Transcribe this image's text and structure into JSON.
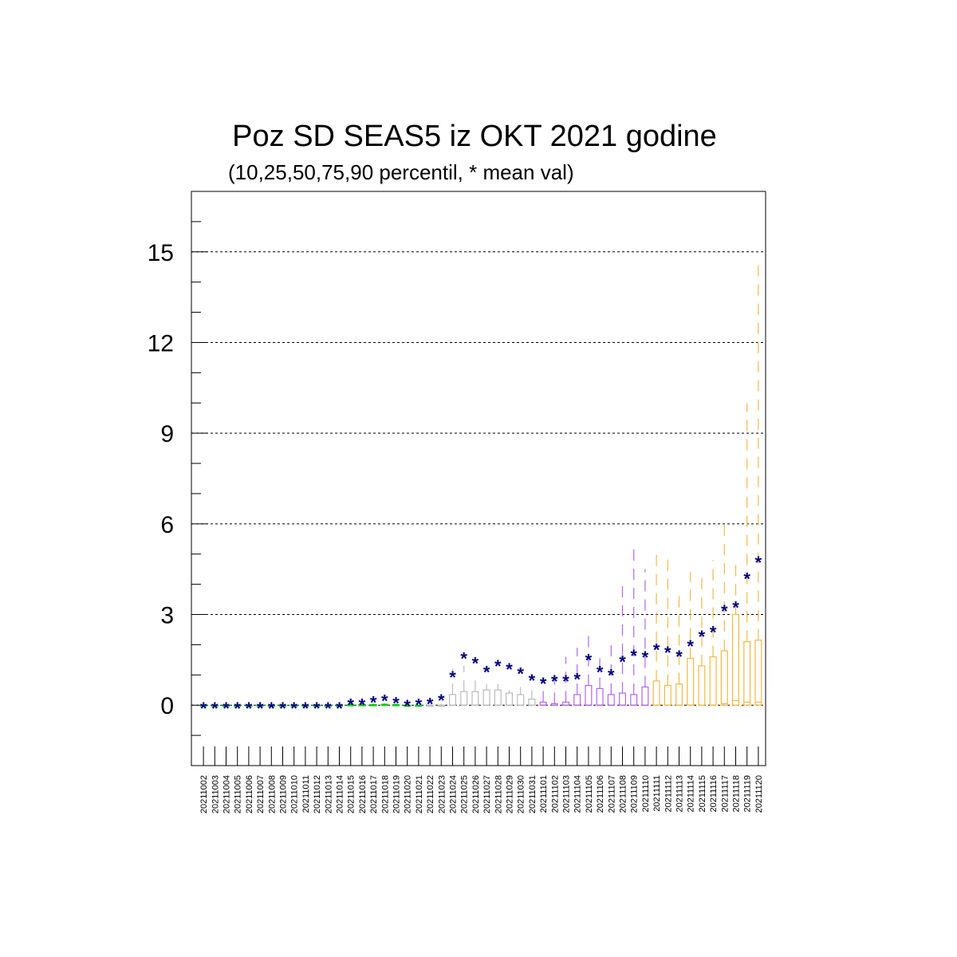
{
  "chart_data": {
    "type": "box",
    "title": "Poz SD SEAS5 iz OKT 2021 godine",
    "subtitle": "(10,25,50,75,90 percentil, * mean val)",
    "xlabel": "",
    "ylabel": "",
    "ylim": [
      -2,
      17
    ],
    "yticks": [
      0,
      3,
      6,
      9,
      12,
      15
    ],
    "grid_y": true,
    "categories": [
      "20211002",
      "20211003",
      "20211004",
      "20211005",
      "20211006",
      "20211007",
      "20211008",
      "20211009",
      "20211010",
      "20211011",
      "20211012",
      "20211013",
      "20211014",
      "20211015",
      "20211016",
      "20211017",
      "20211018",
      "20211019",
      "20211020",
      "20211021",
      "20211022",
      "20211023",
      "20211024",
      "20211025",
      "20211026",
      "20211027",
      "20211028",
      "20211029",
      "20211030",
      "20211031",
      "20211101",
      "20211102",
      "20211103",
      "20211104",
      "20211105",
      "20211106",
      "20211107",
      "20211108",
      "20211109",
      "20211110",
      "20211111",
      "20211112",
      "20211113",
      "20211114",
      "20211115",
      "20211116",
      "20211117",
      "20211118",
      "20211119",
      "20211120"
    ],
    "series": [
      {
        "key": "p10",
        "values": [
          0,
          0,
          0,
          0,
          0,
          0,
          0,
          0,
          0,
          0,
          0,
          0,
          0,
          0,
          0,
          0,
          0,
          0,
          0,
          0,
          0,
          0,
          0,
          0,
          0,
          0,
          0,
          0,
          0,
          0,
          0,
          0,
          0,
          0,
          0,
          0,
          0,
          0,
          0,
          0,
          0,
          0,
          0,
          0,
          0,
          0,
          0,
          0,
          0,
          0
        ]
      },
      {
        "key": "p25",
        "values": [
          0,
          0,
          0,
          0,
          0,
          0,
          0,
          0,
          0,
          0,
          0,
          0,
          0,
          0,
          0,
          0,
          0,
          0,
          0,
          0,
          0,
          0,
          0,
          0,
          0,
          0,
          0,
          0,
          0,
          0,
          0,
          0,
          0,
          0,
          0,
          0,
          0,
          0,
          0,
          0,
          0,
          0,
          0,
          0,
          0,
          0,
          0,
          0,
          0,
          0
        ]
      },
      {
        "key": "p50",
        "values": [
          0,
          0,
          0,
          0,
          0,
          0,
          0,
          0,
          0,
          0,
          0,
          0,
          0,
          0,
          0,
          0,
          0,
          0,
          0,
          0,
          0,
          0,
          0,
          0,
          0,
          0,
          0,
          0,
          0,
          0,
          0,
          0,
          0,
          0,
          0,
          0,
          0,
          0,
          0,
          0,
          0,
          0,
          0,
          0,
          0,
          0,
          0.05,
          0.15,
          0.1,
          0.1
        ]
      },
      {
        "key": "p75",
        "values": [
          0,
          0,
          0,
          0,
          0,
          0,
          0,
          0,
          0,
          0,
          0,
          0,
          0,
          0.02,
          0.02,
          0.02,
          0.03,
          0.02,
          0,
          0,
          0,
          0,
          0.35,
          0.45,
          0.45,
          0.5,
          0.5,
          0.4,
          0.35,
          0.2,
          0.1,
          0.05,
          0.1,
          0.35,
          0.65,
          0.55,
          0.35,
          0.4,
          0.35,
          0.6,
          0.8,
          0.65,
          0.7,
          1.55,
          1.3,
          1.6,
          1.8,
          3.0,
          2.1,
          2.15
        ]
      },
      {
        "key": "p90",
        "values": [
          0,
          0,
          0,
          0,
          0,
          0,
          0,
          0,
          0,
          0,
          0,
          0,
          0,
          0.05,
          0.05,
          0.05,
          0.06,
          0.05,
          0,
          0,
          0,
          0.05,
          1.2,
          1.3,
          0.95,
          0.7,
          0.7,
          0.5,
          0.6,
          0.5,
          0.9,
          1.0,
          1.6,
          1.9,
          2.3,
          1.8,
          2.2,
          4.2,
          5.2,
          4.5,
          5.2,
          5.0,
          3.8,
          4.4,
          4.2,
          4.8,
          6.0,
          4.7,
          10.0,
          14.8
        ]
      },
      {
        "key": "mean",
        "values": [
          0,
          0,
          0,
          0,
          0,
          0,
          0,
          0,
          0,
          0,
          0,
          0,
          0,
          0.13,
          0.13,
          0.2,
          0.25,
          0.18,
          0.08,
          0.13,
          0.15,
          0.27,
          1.03,
          1.65,
          1.5,
          1.2,
          1.4,
          1.3,
          1.15,
          0.93,
          0.83,
          0.9,
          0.9,
          0.97,
          1.6,
          1.2,
          1.1,
          1.55,
          1.75,
          1.7,
          1.95,
          1.85,
          1.72,
          2.07,
          2.38,
          2.53,
          3.22,
          3.35,
          4.3,
          4.83
        ]
      }
    ],
    "box_colors": [
      "#00cc00",
      "#bbbbbb",
      "#b266f0",
      "#f5b840"
    ],
    "mean_color": "#000080",
    "grid_color": "#000000"
  }
}
